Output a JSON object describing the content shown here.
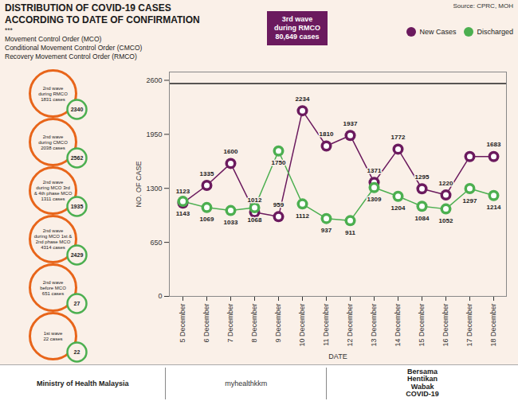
{
  "chart_data": {
    "type": "line",
    "title": "DISTRIBUTION OF COVID-19 CASES",
    "subtitle": "ACCORDING TO DATE OF CONFIRMATION",
    "annotations": [
      "***",
      "Movement Control Order (MCO)",
      "Conditional Movement Control Order (CMCO)",
      "Recovery Movement Control Order (RMCO)"
    ],
    "source": "Source: CPRC, MOH",
    "callout": "3rd wave\nduring RMCO\n80,649 cases",
    "footer": [
      "Ministry of Health Malaysia",
      "myhealthkkm",
      "Bersama\nHentikan\nWabak\nCOVID-19"
    ],
    "xlabel": "DATE",
    "ylabel": "NO. OF CASE",
    "categories": [
      "5 December",
      "6 December",
      "7 December",
      "8 December",
      "9 December",
      "10 December",
      "11 December",
      "12 December",
      "13 December",
      "14 December",
      "15 December",
      "16 December",
      "17 December",
      "18 December"
    ],
    "series": [
      {
        "name": "New Cases",
        "color": "#6B1A5E",
        "values": [
          1123,
          1335,
          1600,
          1012,
          959,
          2234,
          1810,
          1937,
          1371,
          1772,
          1295,
          1220,
          1683,
          1683
        ],
        "value_labels": [
          "1123",
          "1335",
          "1600",
          "1012",
          "959",
          "2234",
          "1810",
          "1937",
          "1371",
          "1772",
          "1295",
          "1220",
          null,
          "1683"
        ]
      },
      {
        "name": "Discharged",
        "color": "#4CAF50",
        "values": [
          1143,
          1069,
          1033,
          1068,
          1750,
          1112,
          937,
          911,
          1309,
          1204,
          1084,
          1052,
          1297,
          1214
        ]
      }
    ],
    "ylim": [
      0,
      2700
    ],
    "yticks": [
      0,
      650,
      1300,
      1950,
      2600
    ],
    "reference_lines": [
      2560
    ],
    "grid": false,
    "legend": "top right",
    "marker": "circle",
    "data_labels": true,
    "background_color": "#FAF0E8",
    "side_panel_color": "#E8651A",
    "side_panels": [
      {
        "label": "2nd wave\nduring RMCO\n1831 cases",
        "value": 2340
      },
      {
        "label": "2nd wave\nduring CMCO\n2038 cases",
        "value": 2562
      },
      {
        "label": "2nd wave\nduring MCO 3rd\n& 4th phase MCO\n1311 cases",
        "value": 1935
      },
      {
        "label": "2nd wave\nduring MCO 1st &\n2nd phase MCO\n4314 cases",
        "value": 2429
      },
      {
        "label": "2nd wave\nbefore MCO\n651 cases",
        "value": 27
      },
      {
        "label": "1st wave\n22 cases",
        "value": 22
      }
    ]
  }
}
